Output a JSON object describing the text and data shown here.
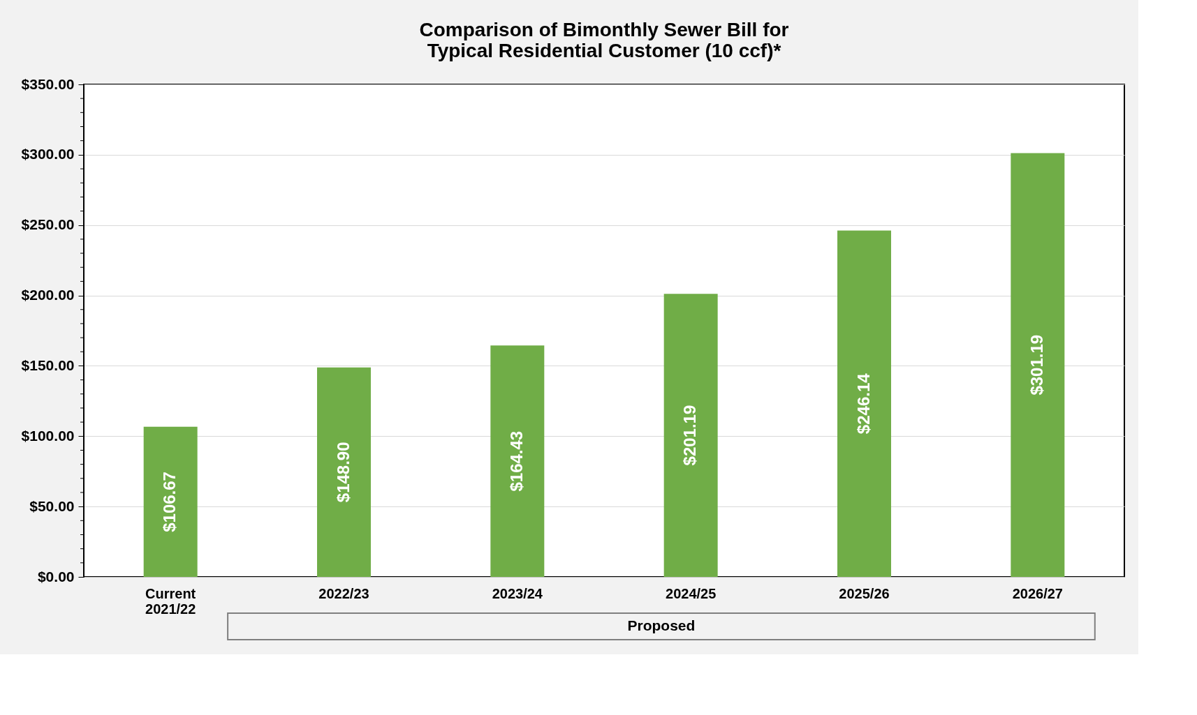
{
  "chart_data": {
    "type": "bar",
    "title": [
      "Comparison of Bimonthly Sewer Bill for",
      "Typical Residential Customer (10 ccf)*"
    ],
    "categories": [
      "Current\n2021/22",
      "2022/23",
      "2023/24",
      "2024/25",
      "2025/26",
      "2026/27"
    ],
    "values": [
      106.67,
      148.9,
      164.43,
      201.19,
      246.14,
      301.19
    ],
    "value_labels": [
      "$106.67",
      "$148.90",
      "$164.43",
      "$201.19",
      "$246.14",
      "$301.19"
    ],
    "color": "#70ad47",
    "ylim": [
      0,
      350
    ],
    "yticks": [
      {
        "value": 0,
        "label": "$0.00"
      },
      {
        "value": 10,
        "label": null
      },
      {
        "value": 20,
        "label": null
      },
      {
        "value": 30,
        "label": null
      },
      {
        "value": 40,
        "label": null
      },
      {
        "value": 50,
        "label": "$50.00"
      },
      {
        "value": 60,
        "label": null
      },
      {
        "value": 70,
        "label": null
      },
      {
        "value": 80,
        "label": null
      },
      {
        "value": 90,
        "label": null
      },
      {
        "value": 100,
        "label": "$100.00"
      },
      {
        "value": 110,
        "label": null
      },
      {
        "value": 120,
        "label": null
      },
      {
        "value": 130,
        "label": null
      },
      {
        "value": 140,
        "label": null
      },
      {
        "value": 150,
        "label": "$150.00"
      },
      {
        "value": 160,
        "label": null
      },
      {
        "value": 170,
        "label": null
      },
      {
        "value": 180,
        "label": null
      },
      {
        "value": 190,
        "label": null
      },
      {
        "value": 200,
        "label": "$200.00"
      },
      {
        "value": 210,
        "label": null
      },
      {
        "value": 220,
        "label": null
      },
      {
        "value": 230,
        "label": null
      },
      {
        "value": 240,
        "label": null
      },
      {
        "value": 250,
        "label": "$250.00"
      },
      {
        "value": 260,
        "label": null
      },
      {
        "value": 270,
        "label": null
      },
      {
        "value": 280,
        "label": null
      },
      {
        "value": 290,
        "label": null
      },
      {
        "value": 300,
        "label": "$300.00"
      },
      {
        "value": 310,
        "label": null
      },
      {
        "value": 320,
        "label": null
      },
      {
        "value": 330,
        "label": null
      },
      {
        "value": 340,
        "label": null
      },
      {
        "value": 350,
        "label": "$350.00"
      }
    ],
    "grid": "y",
    "annotations": [
      "Proposed"
    ]
  }
}
